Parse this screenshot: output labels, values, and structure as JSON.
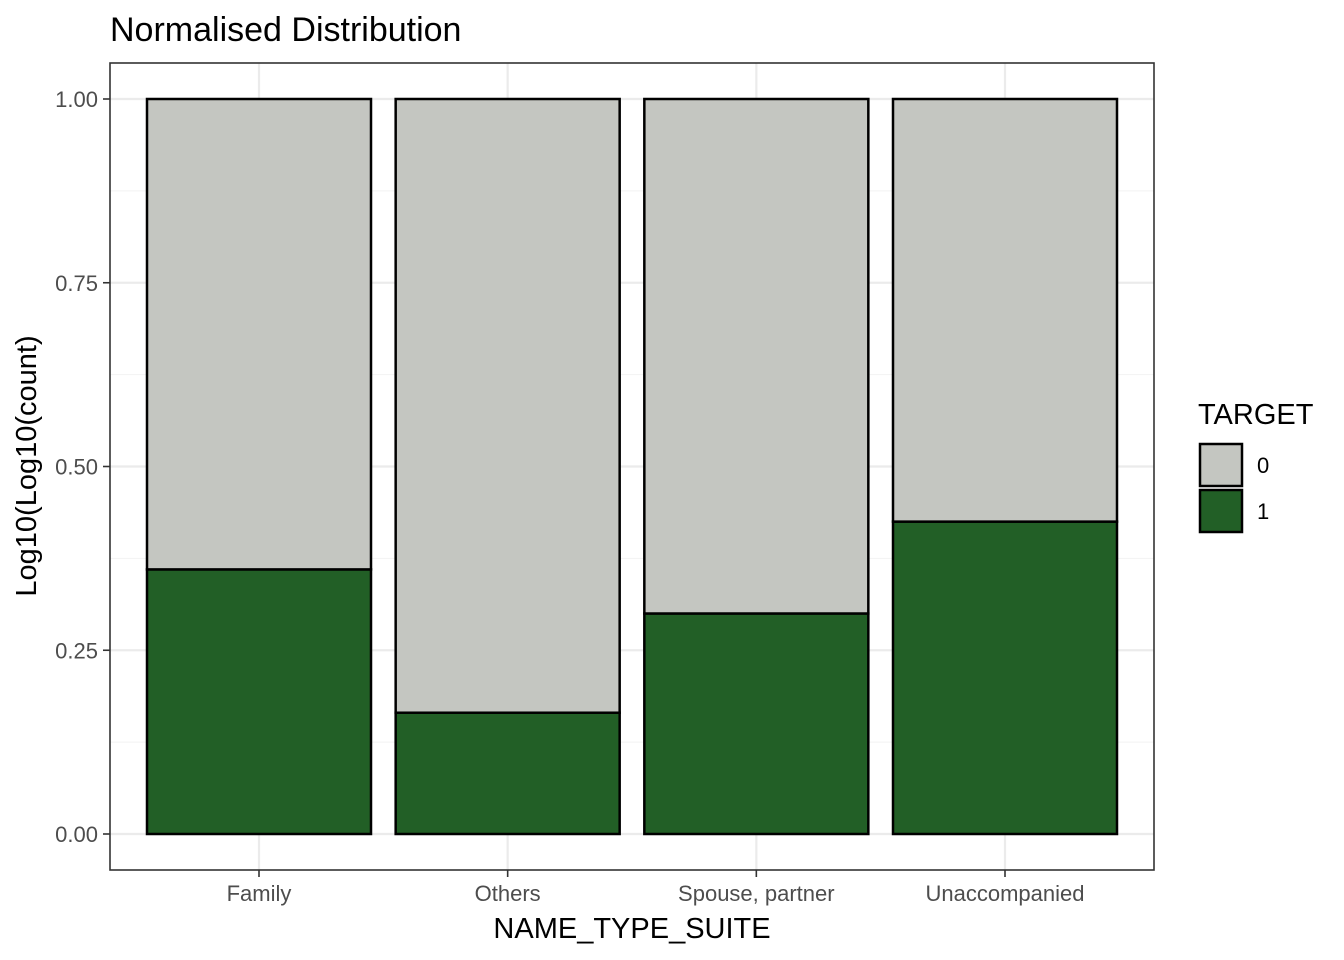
{
  "chart_data": {
    "type": "bar",
    "stacked": true,
    "title": "Normalised Distribution",
    "xlabel": "NAME_TYPE_SUITE",
    "ylabel": "Log10(Log10(count)",
    "categories": [
      "Family",
      "Others",
      "Spouse, partner",
      "Unaccompanied"
    ],
    "ylim": [
      0,
      1
    ],
    "yticks": [
      "0.00",
      "0.25",
      "0.50",
      "0.75",
      "1.00"
    ],
    "series": [
      {
        "name": "1",
        "color": "#225f26",
        "values": [
          0.36,
          0.165,
          0.3,
          0.425
        ]
      },
      {
        "name": "0",
        "color": "#c4c6c1",
        "values": [
          0.64,
          0.835,
          0.7,
          0.575
        ]
      }
    ],
    "legend": {
      "title": "TARGET",
      "position": "right",
      "items": [
        {
          "label": "0",
          "color": "#c4c6c1"
        },
        {
          "label": "1",
          "color": "#225f26"
        }
      ]
    },
    "grid": true,
    "theme": "bw"
  }
}
